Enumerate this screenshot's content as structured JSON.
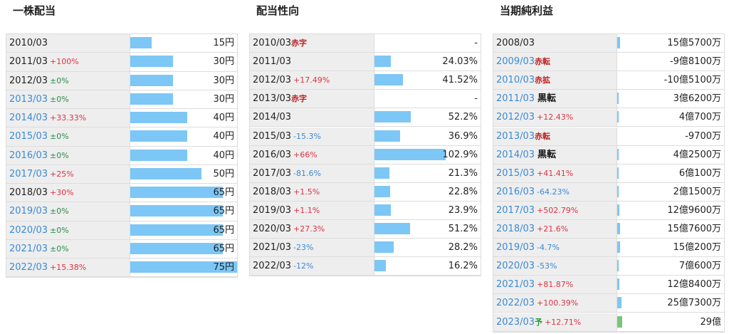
{
  "panels": [
    {
      "title": "一株配当",
      "rows": [
        {
          "period": "2010/03",
          "link": false,
          "value": 15,
          "label": "15円"
        },
        {
          "period": "2011/03",
          "link": false,
          "change": "+100%",
          "value": 30,
          "label": "30円"
        },
        {
          "period": "2012/03",
          "link": false,
          "change": "±0%",
          "value": 30,
          "label": "30円"
        },
        {
          "period": "2013/03",
          "link": true,
          "change": "±0%",
          "value": 30,
          "label": "30円"
        },
        {
          "period": "2014/03",
          "link": true,
          "change": "+33.33%",
          "value": 40,
          "label": "40円"
        },
        {
          "period": "2015/03",
          "link": true,
          "change": "±0%",
          "value": 40,
          "label": "40円"
        },
        {
          "period": "2016/03",
          "link": true,
          "change": "±0%",
          "value": 40,
          "label": "40円"
        },
        {
          "period": "2017/03",
          "link": true,
          "change": "+25%",
          "value": 50,
          "label": "50円"
        },
        {
          "period": "2018/03",
          "link": false,
          "change": "+30%",
          "value": 65,
          "label": "65円"
        },
        {
          "period": "2019/03",
          "link": true,
          "change": "±0%",
          "value": 65,
          "label": "65円"
        },
        {
          "period": "2020/03",
          "link": true,
          "change": "±0%",
          "value": 65,
          "label": "65円"
        },
        {
          "period": "2021/03",
          "link": true,
          "change": "±0%",
          "value": 65,
          "label": "65円"
        },
        {
          "period": "2022/03",
          "link": true,
          "change": "+15.38%",
          "value": 75,
          "label": "75円"
        }
      ]
    },
    {
      "title": "配当性向",
      "rows": [
        {
          "period": "2010/03",
          "link": false,
          "tag": "赤字",
          "value": null,
          "label": "-"
        },
        {
          "period": "2011/03",
          "link": false,
          "value": 24.03,
          "label": "24.03%"
        },
        {
          "period": "2012/03",
          "link": false,
          "change": "+17.49%",
          "value": 41.52,
          "label": "41.52%"
        },
        {
          "period": "2013/03",
          "link": false,
          "tag": "赤字",
          "value": null,
          "label": "-"
        },
        {
          "period": "2014/03",
          "link": false,
          "value": 52.2,
          "label": "52.2%"
        },
        {
          "period": "2015/03",
          "link": false,
          "change": "-15.3%",
          "value": 36.9,
          "label": "36.9%"
        },
        {
          "period": "2016/03",
          "link": false,
          "change": "+66%",
          "value": 102.9,
          "label": "102.9%"
        },
        {
          "period": "2017/03",
          "link": false,
          "change": "-81.6%",
          "value": 21.3,
          "label": "21.3%"
        },
        {
          "period": "2018/03",
          "link": false,
          "change": "+1.5%",
          "value": 22.8,
          "label": "22.8%"
        },
        {
          "period": "2019/03",
          "link": false,
          "change": "+1.1%",
          "value": 23.9,
          "label": "23.9%"
        },
        {
          "period": "2020/03",
          "link": false,
          "change": "+27.3%",
          "value": 51.2,
          "label": "51.2%"
        },
        {
          "period": "2021/03",
          "link": false,
          "change": "-23%",
          "value": 28.2,
          "label": "28.2%"
        },
        {
          "period": "2022/03",
          "link": false,
          "change": "-12%",
          "value": 16.2,
          "label": "16.2%"
        }
      ]
    },
    {
      "title": "当期純利益",
      "rows": [
        {
          "period": "2008/03",
          "link": false,
          "value": 155700,
          "label": "15億5700万"
        },
        {
          "period": "2009/03",
          "link": true,
          "tag": "赤転",
          "value": -98100,
          "label": "-9億8100万"
        },
        {
          "period": "2010/03",
          "link": true,
          "tag": "赤拡",
          "value": -105100,
          "label": "-10億5100万"
        },
        {
          "period": "2011/03",
          "link": true,
          "tag": "黒転",
          "value": 36200,
          "label": "3億6200万"
        },
        {
          "period": "2012/03",
          "link": true,
          "change": "+12.43%",
          "value": 40700,
          "label": "4億700万"
        },
        {
          "period": "2013/03",
          "link": true,
          "tag": "赤転",
          "value": -9700,
          "label": "-9700万"
        },
        {
          "period": "2014/03",
          "link": true,
          "tag": "黒転",
          "value": 42500,
          "label": "4億2500万"
        },
        {
          "period": "2015/03",
          "link": true,
          "change": "+41.41%",
          "value": 60100,
          "label": "6億100万"
        },
        {
          "period": "2016/03",
          "link": true,
          "change": "-64.23%",
          "value": 21500,
          "label": "2億1500万"
        },
        {
          "period": "2017/03",
          "link": true,
          "change": "+502.79%",
          "value": 129600,
          "label": "12億9600万"
        },
        {
          "period": "2018/03",
          "link": true,
          "change": "+21.6%",
          "value": 157600,
          "label": "15億7600万"
        },
        {
          "period": "2019/03",
          "link": true,
          "change": "-4.7%",
          "value": 150200,
          "label": "15億200万"
        },
        {
          "period": "2020/03",
          "link": true,
          "change": "-53%",
          "value": 70600,
          "label": "7億600万"
        },
        {
          "period": "2021/03",
          "link": true,
          "change": "+81.87%",
          "value": 128400,
          "label": "12億8400万"
        },
        {
          "period": "2022/03",
          "link": true,
          "change": "+100.39%",
          "value": 257300,
          "label": "25億7300万"
        },
        {
          "period": "2023/03",
          "link": true,
          "tag": "予",
          "change": "+12.71%",
          "value": 290000,
          "label": "29億",
          "forecast": true
        }
      ]
    }
  ]
}
